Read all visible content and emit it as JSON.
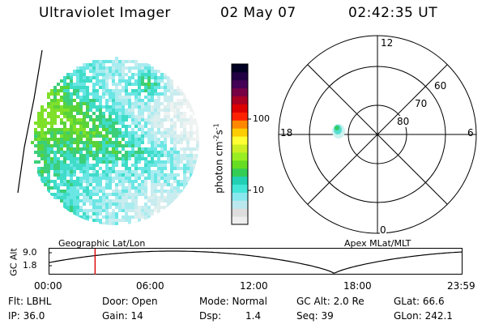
{
  "header": {
    "instrument": "Ultraviolet Imager",
    "date": "02 May 07",
    "time": "02:42:35 UT"
  },
  "colorbar": {
    "label_main": "photon cm",
    "label_sup1": "-2",
    "label_mid": "s",
    "label_sup2": "-1",
    "ticks": [
      "100",
      "10"
    ],
    "colors": [
      "#eeeeee",
      "#dddddd",
      "#bbe8ee",
      "#88e8ee",
      "#44e6d8",
      "#22d0b4",
      "#33cc55",
      "#66dd22",
      "#99ee22",
      "#ccee22",
      "#ffff33",
      "#ffcc00",
      "#ff8800",
      "#ff2200",
      "#dd0000",
      "#aa0022",
      "#770044",
      "#440055",
      "#220044",
      "#000022"
    ]
  },
  "polar_plot": {
    "mlt_labels": [
      "12",
      "18",
      "6",
      "0"
    ],
    "lat_labels": [
      "60",
      "70",
      "80"
    ]
  },
  "geo_label": "Geographic Lat/Lon",
  "apex_label": "Apex MLat/MLT",
  "alt_strip": {
    "ylabel": "GC Alt",
    "y_ticks": [
      "9.0",
      "1.8"
    ],
    "x_ticks": [
      "00:00",
      "06:00",
      "12:00",
      "18:00",
      "23:59"
    ],
    "marker_time": "02:42",
    "marker_color": "#dd0000"
  },
  "info": {
    "flt": "Flt: LBHL",
    "ip": "IP: 36.0",
    "door": "Door: Open",
    "gain": "Gain: 14",
    "mode": "Mode: Normal",
    "dsp_label": "Dsp:",
    "dsp_value": "1.4",
    "gcalt": "GC Alt: 2.0 Re",
    "seq": "Seq: 39",
    "glat": "GLat:  66.6",
    "glon": "GLon: 242.1"
  }
}
